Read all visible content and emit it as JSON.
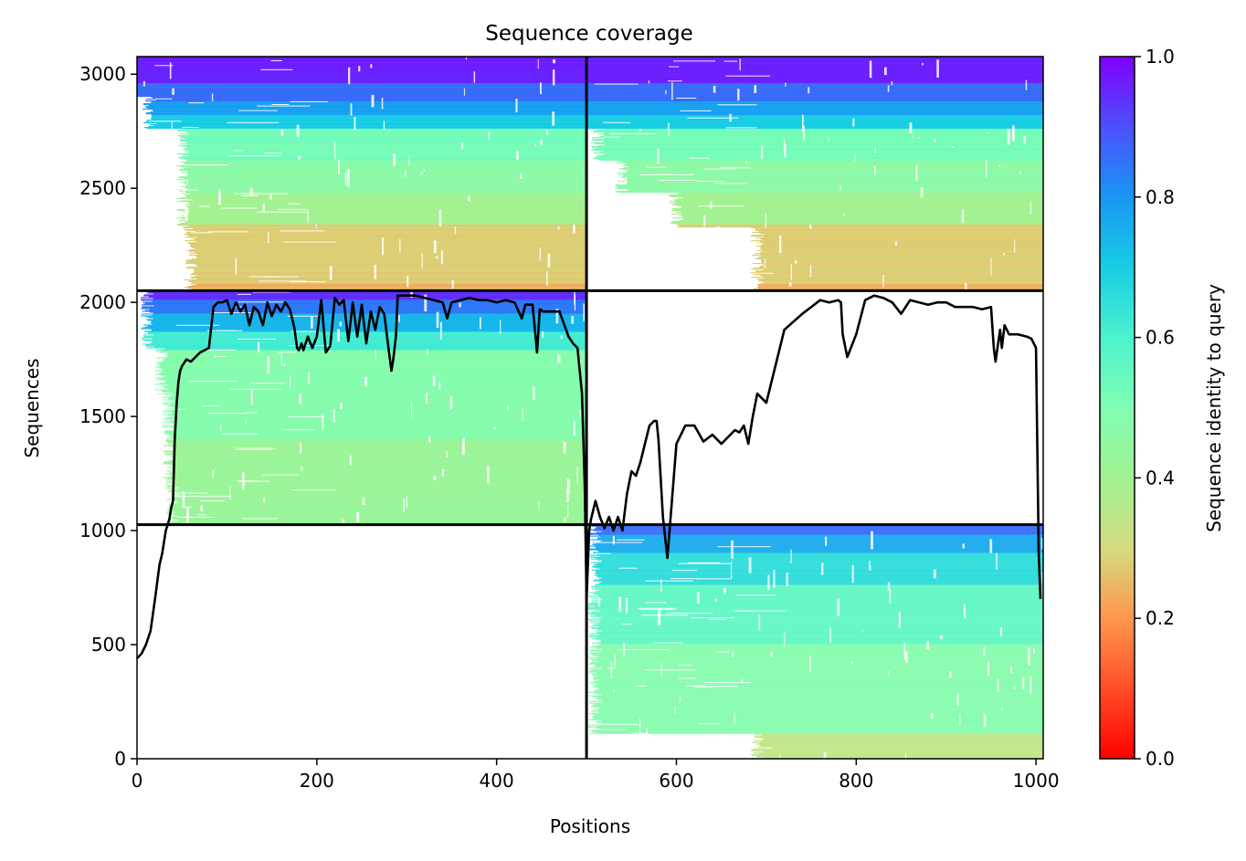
{
  "chart_data": {
    "type": "heatmap",
    "title": "Sequence coverage",
    "xlabel": "Positions",
    "ylabel": "Sequences",
    "xlim": [
      0,
      1008
    ],
    "ylim": [
      0,
      3077
    ],
    "x_ticks": [
      0,
      200,
      400,
      600,
      800,
      1000
    ],
    "y_ticks": [
      0,
      500,
      1000,
      1500,
      2000,
      2500,
      3000
    ],
    "colorbar": {
      "label": "Sequence identity to query",
      "colormap": "rainbow",
      "range": [
        0,
        1
      ],
      "ticks": [
        0.0,
        0.2,
        0.4,
        0.6,
        0.8,
        1.0
      ],
      "tick_labels": [
        "0.0",
        "0.2",
        "0.4",
        "0.6",
        "0.8",
        "1.0"
      ]
    },
    "divider_x": 500,
    "divider_y": [
      1026,
      2051
    ],
    "blocks": [
      {
        "name": "top-left",
        "x": [
          0,
          500
        ],
        "y": [
          2051,
          3077
        ],
        "bands": [
          [
            2051,
            2080,
            0.24
          ],
          [
            2080,
            2340,
            0.28
          ],
          [
            2340,
            2480,
            0.4
          ],
          [
            2480,
            2620,
            0.46
          ],
          [
            2620,
            2760,
            0.52
          ],
          [
            2760,
            2820,
            0.7
          ],
          [
            2820,
            2880,
            0.78
          ],
          [
            2880,
            2960,
            0.86
          ],
          [
            2960,
            3077,
            0.96
          ]
        ],
        "start_rows": [
          [
            2051,
            2330,
            52
          ],
          [
            2330,
            2760,
            44
          ],
          [
            2760,
            2900,
            6
          ],
          [
            2900,
            3077,
            0
          ]
        ]
      },
      {
        "name": "top-right",
        "x": [
          500,
          1008
        ],
        "y": [
          2051,
          3077
        ],
        "bands": [
          [
            2051,
            2080,
            0.24
          ],
          [
            2080,
            2340,
            0.28
          ],
          [
            2340,
            2480,
            0.4
          ],
          [
            2480,
            2620,
            0.46
          ],
          [
            2620,
            2760,
            0.52
          ],
          [
            2760,
            2820,
            0.7
          ],
          [
            2820,
            2880,
            0.78
          ],
          [
            2880,
            2960,
            0.86
          ],
          [
            2960,
            3077,
            0.96
          ]
        ],
        "start_rows": [
          [
            2051,
            2330,
            682
          ],
          [
            2330,
            2480,
            592
          ],
          [
            2480,
            2620,
            532
          ],
          [
            2620,
            2760,
            505
          ],
          [
            2760,
            3077,
            500
          ]
        ]
      },
      {
        "name": "middle-left",
        "x": [
          0,
          500
        ],
        "y": [
          1026,
          2051
        ],
        "bands": [
          [
            1026,
            1400,
            0.42
          ],
          [
            1400,
            1790,
            0.48
          ],
          [
            1790,
            1870,
            0.62
          ],
          [
            1870,
            1950,
            0.74
          ],
          [
            1950,
            2010,
            0.84
          ],
          [
            2010,
            2051,
            0.94
          ]
        ],
        "start_rows": [
          [
            1026,
            1200,
            32
          ],
          [
            1200,
            1600,
            28
          ],
          [
            1600,
            1800,
            20
          ],
          [
            1800,
            2051,
            4
          ]
        ]
      },
      {
        "name": "bottom-right",
        "x": [
          500,
          1008
        ],
        "y": [
          0,
          1026
        ],
        "bands": [
          [
            0,
            110,
            0.34
          ],
          [
            110,
            500,
            0.48
          ],
          [
            500,
            760,
            0.56
          ],
          [
            760,
            900,
            0.66
          ],
          [
            900,
            980,
            0.76
          ],
          [
            980,
            1026,
            0.86
          ]
        ],
        "start_rows": [
          [
            0,
            110,
            682
          ],
          [
            110,
            1026,
            502
          ]
        ]
      }
    ],
    "series": [
      {
        "x": [
          0,
          5,
          10,
          15,
          20,
          25,
          28,
          32,
          36,
          38,
          40,
          42,
          44,
          46,
          48,
          50,
          55,
          60,
          65,
          70,
          75,
          80,
          85,
          90,
          95,
          100,
          105,
          110,
          115,
          120,
          125,
          130,
          135,
          140,
          145,
          150,
          155,
          160,
          165,
          170,
          175,
          178,
          180,
          183,
          185,
          190,
          195,
          200,
          205,
          210,
          215,
          220,
          225,
          230,
          235,
          240,
          245,
          250,
          255,
          260,
          265,
          270,
          275,
          280,
          283,
          285,
          288,
          290,
          300,
          310,
          320,
          330,
          340,
          345,
          350,
          360,
          370,
          380,
          390,
          400,
          410,
          420,
          428,
          432,
          440,
          445,
          448,
          452,
          460,
          470,
          480,
          485,
          490,
          495,
          498,
          500,
          503,
          505,
          510,
          515,
          520,
          525,
          530,
          535,
          540,
          545,
          550,
          555,
          560,
          565,
          570,
          575,
          578,
          580,
          585,
          590,
          600,
          610,
          620,
          630,
          640,
          650,
          660,
          665,
          670,
          675,
          680,
          685,
          690,
          700,
          720,
          740,
          760,
          770,
          780,
          783,
          785,
          790,
          800,
          810,
          820,
          830,
          840,
          850,
          860,
          870,
          880,
          890,
          900,
          910,
          920,
          930,
          940,
          950,
          953,
          955,
          960,
          962,
          965,
          970,
          980,
          990,
          995,
          1000,
          1003,
          1005
        ],
        "y": [
          440,
          460,
          500,
          560,
          700,
          850,
          900,
          1000,
          1050,
          1100,
          1130,
          1400,
          1550,
          1650,
          1700,
          1720,
          1750,
          1740,
          1760,
          1780,
          1790,
          1800,
          1980,
          2000,
          2000,
          2010,
          1950,
          2000,
          1960,
          1990,
          1900,
          1980,
          1960,
          1900,
          2000,
          1940,
          1990,
          1960,
          2000,
          1970,
          1890,
          1800,
          1790,
          1820,
          1790,
          1850,
          1800,
          1850,
          2010,
          1780,
          1810,
          2020,
          1990,
          2010,
          1830,
          2000,
          1850,
          1990,
          1820,
          1960,
          1880,
          1980,
          1950,
          1790,
          1700,
          1750,
          1850,
          2030,
          2030,
          2030,
          2020,
          2010,
          2000,
          1930,
          2000,
          2010,
          2020,
          2010,
          2010,
          2000,
          2010,
          2000,
          1930,
          1990,
          1990,
          1780,
          1970,
          1960,
          1960,
          1960,
          1850,
          1820,
          1800,
          1600,
          1200,
          700,
          1000,
          1050,
          1130,
          1060,
          1010,
          1060,
          1000,
          1060,
          1000,
          1160,
          1260,
          1240,
          1300,
          1380,
          1460,
          1480,
          1480,
          1400,
          1060,
          880,
          1380,
          1460,
          1460,
          1390,
          1420,
          1380,
          1420,
          1440,
          1430,
          1460,
          1380,
          1500,
          1600,
          1560,
          1880,
          1950,
          2010,
          2000,
          2010,
          2000,
          1860,
          1760,
          1860,
          2010,
          2030,
          2020,
          2000,
          1950,
          2010,
          2000,
          1990,
          2000,
          2000,
          1980,
          1980,
          1980,
          1970,
          1980,
          1800,
          1740,
          1880,
          1800,
          1900,
          1860,
          1860,
          1850,
          1840,
          1800,
          900,
          700
        ]
      }
    ]
  }
}
